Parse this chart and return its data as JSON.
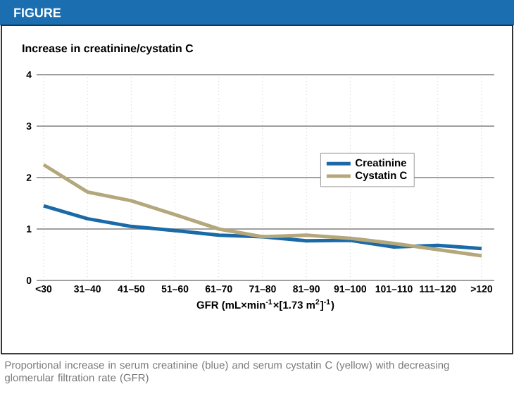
{
  "chart_data": {
    "type": "line",
    "title": "Increase in creatinine/cystatin C",
    "xlabel": "GFR (mL×min$^{-1}$×[1.73 m$^{2}$]$^{-1}$)",
    "annotations": [
      "FIGURE",
      "Proportional increase in serum creatinine (blue) and serum cystatin C (yellow) with decreasing glomerular filtration rate (GFR)"
    ],
    "categories": [
      "<30",
      "31–40",
      "41–50",
      "51–60",
      "61–70",
      "71–80",
      "81–90",
      "91–100",
      "101–110",
      "111–120",
      ">120"
    ],
    "series": [
      {
        "name": "Creatinine",
        "color": "#1a6aa8",
        "values": [
          1.45,
          1.2,
          1.05,
          0.97,
          0.88,
          0.85,
          0.77,
          0.78,
          0.65,
          0.68,
          0.62
        ]
      },
      {
        "name": "Cystatin C",
        "color": "#b5a77c",
        "values": [
          2.25,
          1.72,
          1.55,
          1.28,
          1.0,
          0.85,
          0.88,
          0.82,
          0.72,
          0.6,
          0.48
        ]
      }
    ],
    "ylim": [
      0,
      4
    ],
    "yticks": [
      0,
      1,
      2,
      3,
      4
    ],
    "grid": true,
    "legend": "right",
    "marker": "none",
    "line_style": "solid"
  }
}
